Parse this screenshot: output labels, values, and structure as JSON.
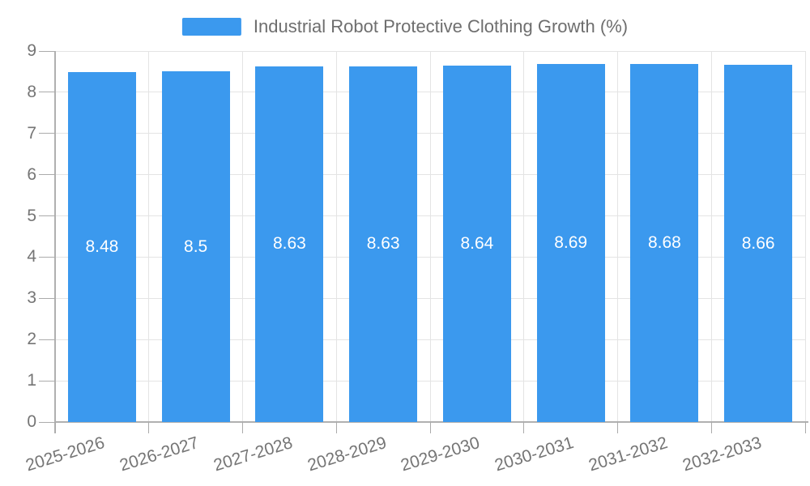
{
  "chart_data": {
    "type": "bar",
    "title": "Industrial Robot Protective Clothing Growth (%)",
    "legend": {
      "label": "Industrial Robot Protective Clothing Growth (%)",
      "position": "top-center"
    },
    "categories": [
      "2025-2026",
      "2026-2027",
      "2027-2028",
      "2028-2029",
      "2029-2030",
      "2030-2031",
      "2031-2032",
      "2032-2033"
    ],
    "series": [
      {
        "name": "Industrial Robot Protective Clothing Growth (%)",
        "values": [
          8.48,
          8.5,
          8.63,
          8.63,
          8.64,
          8.69,
          8.68,
          8.66
        ]
      }
    ],
    "value_labels": [
      "8.48",
      "8.5",
      "8.63",
      "8.63",
      "8.64",
      "8.69",
      "8.68",
      "8.66"
    ],
    "xlabel": "",
    "ylabel": "",
    "ylim": [
      0,
      9
    ],
    "yticks": [
      "0",
      "1",
      "2",
      "3",
      "4",
      "5",
      "6",
      "7",
      "8",
      "9"
    ],
    "grid": true,
    "x_tick_label_rotation_deg": -17,
    "colors": {
      "bar": "#3B99EE",
      "bar_value_text": "#FFFFFF",
      "grid": "#E4E4E4",
      "axis": "#B0B0B0",
      "tick": "#ABABAB",
      "tick_text": "#757575",
      "legend_text": "#6E6E6E",
      "background": "#FFFFFF"
    }
  }
}
